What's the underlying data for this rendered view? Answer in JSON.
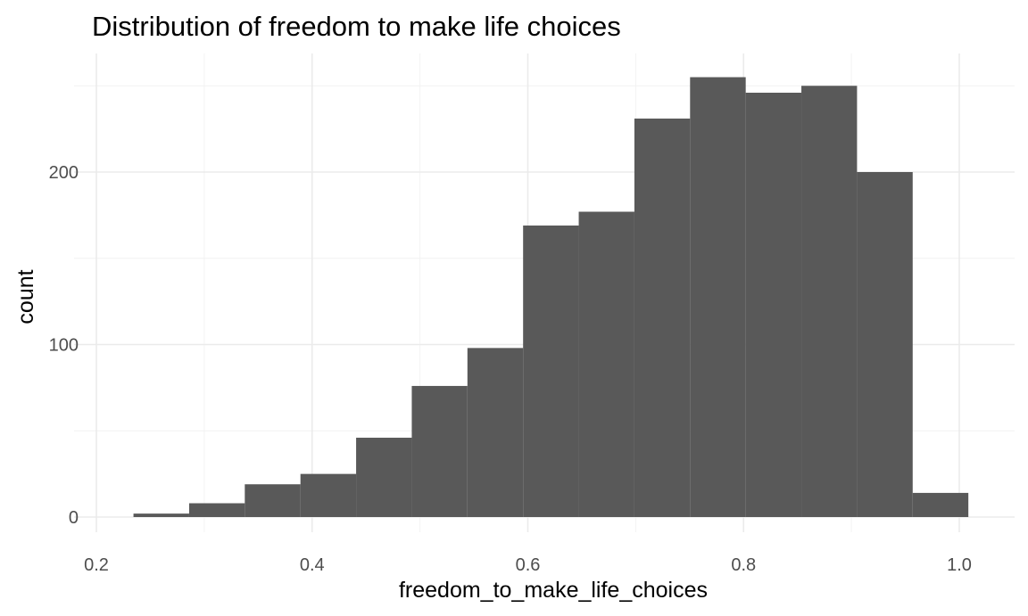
{
  "chart_data": {
    "type": "histogram",
    "title": "Distribution of freedom to make life choices",
    "xlabel": "freedom_to_make_life_choices",
    "ylabel": "count",
    "xlim": [
      0.2,
      1.025
    ],
    "ylim": [
      0,
      260
    ],
    "x_ticks": [
      {
        "value": 0.2,
        "label": "0.2"
      },
      {
        "value": 0.4,
        "label": "0.4"
      },
      {
        "value": 0.6,
        "label": "0.6"
      },
      {
        "value": 0.8,
        "label": "0.8"
      },
      {
        "value": 1.0,
        "label": "1.0"
      }
    ],
    "x_minor_ticks": [
      0.3,
      0.5,
      0.7,
      0.9
    ],
    "y_ticks": [
      {
        "value": 0,
        "label": "0"
      },
      {
        "value": 100,
        "label": "100"
      },
      {
        "value": 200,
        "label": "200"
      }
    ],
    "y_minor_ticks": [
      50,
      150,
      250
    ],
    "bin_width": 0.0516,
    "bins": [
      {
        "x0": 0.2344,
        "x1": 0.286,
        "count": 2
      },
      {
        "x0": 0.286,
        "x1": 0.3376,
        "count": 8
      },
      {
        "x0": 0.3376,
        "x1": 0.3892,
        "count": 19
      },
      {
        "x0": 0.3892,
        "x1": 0.4408,
        "count": 25
      },
      {
        "x0": 0.4408,
        "x1": 0.4924,
        "count": 46
      },
      {
        "x0": 0.4924,
        "x1": 0.544,
        "count": 76
      },
      {
        "x0": 0.544,
        "x1": 0.5956,
        "count": 98
      },
      {
        "x0": 0.5956,
        "x1": 0.6472,
        "count": 169
      },
      {
        "x0": 0.6472,
        "x1": 0.6988,
        "count": 177
      },
      {
        "x0": 0.6988,
        "x1": 0.7504,
        "count": 231
      },
      {
        "x0": 0.7504,
        "x1": 0.802,
        "count": 255
      },
      {
        "x0": 0.802,
        "x1": 0.8536,
        "count": 246
      },
      {
        "x0": 0.8536,
        "x1": 0.9052,
        "count": 250
      },
      {
        "x0": 0.9052,
        "x1": 0.9568,
        "count": 200
      },
      {
        "x0": 0.9568,
        "x1": 1.0084,
        "count": 14
      }
    ],
    "bar_color": "#595959",
    "grid": true,
    "legend": "none"
  }
}
